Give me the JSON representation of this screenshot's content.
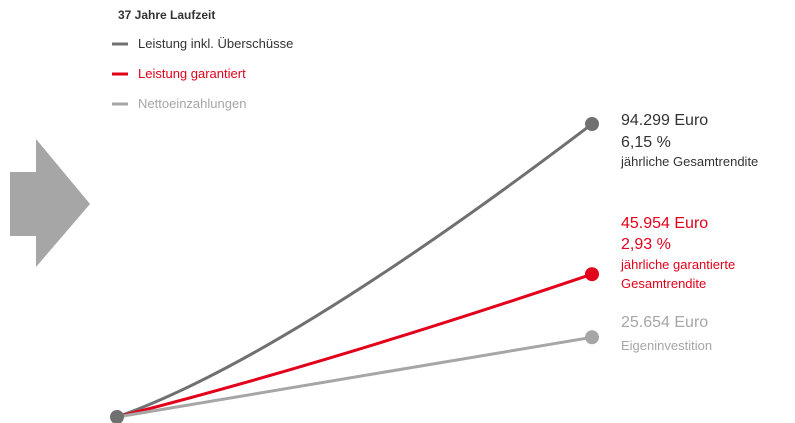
{
  "chart_data": {
    "type": "line",
    "title": "37 Jahre Laufzeit",
    "x": [
      0,
      37
    ],
    "xlabel": "",
    "ylabel": "",
    "ylim": [
      0,
      94299
    ],
    "grid": false,
    "legend_placement": "top-left",
    "series": [
      {
        "name": "Leistung inkl. Überschüsse",
        "color": "#707070",
        "curve": "convex",
        "values": [
          0,
          94299
        ],
        "end_labels": [
          "94.299 Euro",
          "6,15 %",
          "jährliche Gesamtrendite"
        ]
      },
      {
        "name": "Leistung garantiert",
        "color": "#e2001a",
        "curve": "slightly-convex",
        "values": [
          0,
          45954
        ],
        "end_labels": [
          "45.954 Euro",
          "2,93 %",
          "jährliche garantierte",
          "Gesamtrendite"
        ]
      },
      {
        "name": "Nettoeinzahlungen",
        "color": "#a6a6a6",
        "curve": "linear",
        "values": [
          0,
          25654
        ],
        "end_labels": [
          "25.654 Euro",
          "Eigeninvestition"
        ]
      }
    ]
  },
  "colors": {
    "arrow": "#a6a6a6",
    "text": "#333333",
    "origin": "#707070"
  },
  "icons": {
    "arrow": "right-arrow-icon"
  }
}
